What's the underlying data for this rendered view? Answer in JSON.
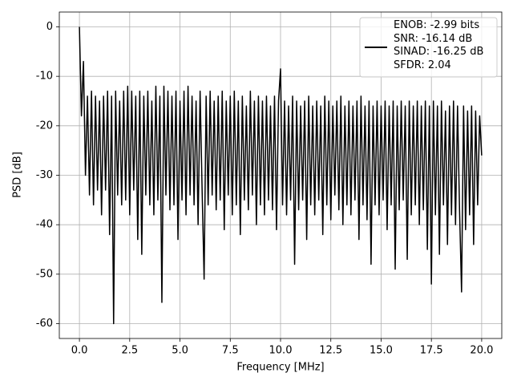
{
  "chart_data": {
    "type": "line",
    "xlabel": "Frequency [MHz]",
    "ylabel": "PSD [dB]",
    "xlim": [
      -1,
      21
    ],
    "ylim": [
      -63,
      3
    ],
    "xticks": [
      {
        "value": 0,
        "label": "0.0"
      },
      2.5,
      {
        "value": 5,
        "label": "5.0"
      },
      7.5,
      {
        "value": 10,
        "label": "10.0"
      },
      12.5,
      {
        "value": 15,
        "label": "15.0"
      },
      17.5,
      {
        "value": 20,
        "label": "20.0"
      }
    ],
    "yticks": [
      0,
      -10,
      -20,
      -30,
      -40,
      -50,
      -60
    ],
    "grid": true,
    "legend_position": "upper right",
    "x": [
      0,
      0.1,
      0.2,
      0.3,
      0.4,
      0.5,
      0.6,
      0.7,
      0.8,
      0.9,
      1,
      1.1,
      1.2,
      1.3,
      1.4,
      1.5,
      1.6,
      1.7,
      1.8,
      1.9,
      2,
      2.1,
      2.2,
      2.3,
      2.4,
      2.5,
      2.6,
      2.7,
      2.8,
      2.9,
      3,
      3.1,
      3.2,
      3.3,
      3.4,
      3.5,
      3.6,
      3.7,
      3.8,
      3.9,
      4,
      4.1,
      4.2,
      4.3,
      4.4,
      4.5,
      4.6,
      4.7,
      4.8,
      4.9,
      5,
      5.1,
      5.2,
      5.3,
      5.4,
      5.5,
      5.6,
      5.7,
      5.8,
      5.9,
      6,
      6.1,
      6.2,
      6.3,
      6.4,
      6.5,
      6.6,
      6.7,
      6.8,
      6.9,
      7,
      7.1,
      7.2,
      7.3,
      7.4,
      7.5,
      7.6,
      7.7,
      7.8,
      7.9,
      8,
      8.1,
      8.2,
      8.3,
      8.4,
      8.5,
      8.6,
      8.7,
      8.8,
      8.9,
      9,
      9.1,
      9.2,
      9.3,
      9.4,
      9.5,
      9.6,
      9.7,
      9.8,
      9.9,
      10,
      10.1,
      10.2,
      10.3,
      10.4,
      10.5,
      10.6,
      10.7,
      10.8,
      10.9,
      11,
      11.1,
      11.2,
      11.3,
      11.4,
      11.5,
      11.6,
      11.7,
      11.8,
      11.9,
      12,
      12.1,
      12.2,
      12.3,
      12.4,
      12.5,
      12.6,
      12.7,
      12.8,
      12.9,
      13,
      13.1,
      13.2,
      13.3,
      13.4,
      13.5,
      13.6,
      13.7,
      13.8,
      13.9,
      14,
      14.1,
      14.2,
      14.3,
      14.4,
      14.5,
      14.6,
      14.7,
      14.8,
      14.9,
      15,
      15.1,
      15.2,
      15.3,
      15.4,
      15.5,
      15.6,
      15.7,
      15.8,
      15.9,
      16,
      16.1,
      16.2,
      16.3,
      16.4,
      16.5,
      16.6,
      16.7,
      16.8,
      16.9,
      17,
      17.1,
      17.2,
      17.3,
      17.4,
      17.5,
      17.6,
      17.7,
      17.8,
      17.9,
      18,
      18.1,
      18.2,
      18.3,
      18.4,
      18.5,
      18.6,
      18.7,
      18.8,
      18.9,
      19,
      19.1,
      19.2,
      19.3,
      19.4,
      19.5,
      19.6,
      19.7,
      19.8,
      19.9,
      20
    ],
    "series": [
      {
        "name": "ENOB: -2.99 bits\nSNR: -16.14 dB\nSINAD: -16.25 dB\nSFDR: 2.04",
        "color": "#000000",
        "values": [
          0,
          -18,
          -7,
          -30,
          -14,
          -34,
          -13,
          -36,
          -14,
          -33,
          -15,
          -38,
          -14,
          -33,
          -13,
          -42,
          -14,
          -60,
          -13,
          -34,
          -15,
          -36,
          -13,
          -35,
          -12,
          -38,
          -13,
          -33,
          -14,
          -43,
          -13,
          -46,
          -14,
          -34,
          -13,
          -36,
          -15,
          -38,
          -12,
          -35,
          -14,
          -55.7,
          -12,
          -34,
          -13,
          -37,
          -14,
          -36,
          -13,
          -43,
          -15,
          -35,
          -13,
          -38,
          -12,
          -34,
          -14,
          -36,
          -15,
          -40,
          -13,
          -33,
          -51,
          -14,
          -36,
          -13,
          -34,
          -15,
          -37,
          -14,
          -35,
          -13,
          -41,
          -15,
          -34,
          -14,
          -38,
          -13,
          -36,
          -15,
          -42,
          -14,
          -35,
          -16,
          -37,
          -13,
          -34,
          -15,
          -40,
          -14,
          -36,
          -15,
          -38,
          -14,
          -35,
          -16,
          -37,
          -14,
          -41,
          -15,
          -8.5,
          -36,
          -15,
          -38,
          -16,
          -35,
          -14,
          -48,
          -15,
          -37,
          -16,
          -35,
          -15,
          -43,
          -14,
          -36,
          -16,
          -38,
          -15,
          -35,
          -16,
          -42,
          -14,
          -36,
          -15,
          -39,
          -16,
          -34,
          -15,
          -37,
          -14,
          -40,
          -16,
          -36,
          -15,
          -38,
          -16,
          -35,
          -15,
          -43,
          -14,
          -36,
          -16,
          -39,
          -15,
          -48,
          -16,
          -36,
          -15,
          -38,
          -16,
          -35,
          -15,
          -41,
          -16,
          -36,
          -15,
          -49,
          -16,
          -37,
          -15,
          -35,
          -16,
          -47,
          -15,
          -38,
          -16,
          -36,
          -15,
          -40,
          -16,
          -37,
          -15,
          -45,
          -16,
          -52,
          -15,
          -38,
          -16,
          -46,
          -15,
          -36,
          -17,
          -44,
          -16,
          -38,
          -15,
          -40,
          -16,
          -37,
          -53.6,
          -16,
          -41,
          -17,
          -38,
          -16,
          -44,
          -17,
          -36,
          -18,
          -26
        ]
      }
    ]
  }
}
